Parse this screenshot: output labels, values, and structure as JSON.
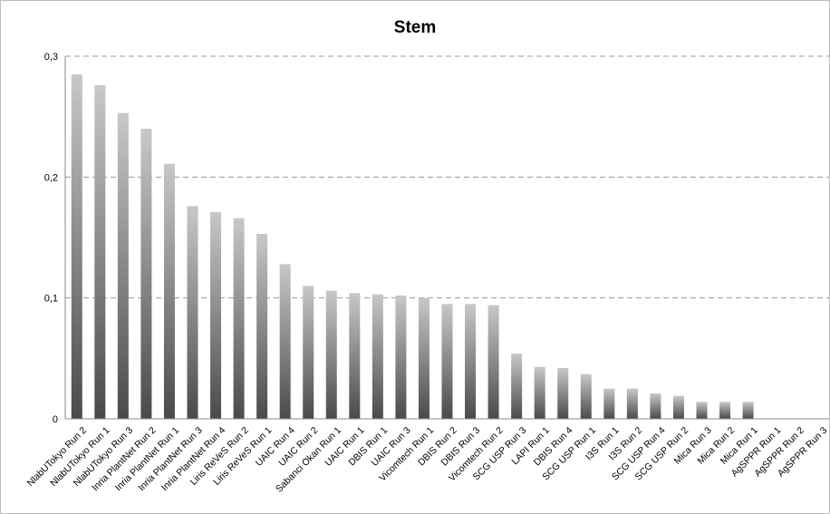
{
  "chart_data": {
    "type": "bar",
    "title": "Stem",
    "xlabel": "",
    "ylabel": "",
    "ylim": [
      0,
      0.3
    ],
    "yticks": [
      {
        "value": 0,
        "label": "0"
      },
      {
        "value": 0.1,
        "label": "0,1"
      },
      {
        "value": 0.2,
        "label": "0,2"
      },
      {
        "value": 0.3,
        "label": "0,3"
      }
    ],
    "grid": true,
    "legend": "none",
    "bar_color_top": "#c8c8c8",
    "bar_color_bottom": "#4a4a4a",
    "categories": [
      "NlabUTokyo Run 2",
      "NlabUTokyo Run 1",
      "NlabUTokyo Run 3",
      "Inria PlantNet Run 2",
      "Inria PlantNet Run 1",
      "Inria PlantNet Run 3",
      "Inria PlantNet Run 4",
      "Liris ReVeS Run 2",
      "Liris ReVeS Run 1",
      "UAIC Run 4",
      "UAIC Run 2",
      "Sabanci Okan Run 1",
      "UAIC Run 1",
      "DBIS Run 1",
      "UAIC Run 3",
      "Vicomtech Run 1",
      "DBIS Run 2",
      "DBIS Run 3",
      "Vicomtech Run 2",
      "SCG USP Run 3",
      "LAPI Run 1",
      "DBIS Run 4",
      "SCG USP Run 1",
      "I3S Run 1",
      "I3S Run 2",
      "SCG USP Run 4",
      "SCG USP Run 2",
      "Mica Run 3",
      "Mica Run 2",
      "Mica Run 1",
      "AgSPPR Run 1",
      "AgSPPR Run 2",
      "AgSPPR Run 3"
    ],
    "values": [
      0.285,
      0.276,
      0.253,
      0.24,
      0.211,
      0.176,
      0.171,
      0.166,
      0.153,
      0.128,
      0.11,
      0.106,
      0.104,
      0.103,
      0.102,
      0.1,
      0.095,
      0.095,
      0.094,
      0.054,
      0.043,
      0.042,
      0.037,
      0.025,
      0.025,
      0.021,
      0.019,
      0.014,
      0.014,
      0.014,
      0,
      0,
      0
    ]
  }
}
